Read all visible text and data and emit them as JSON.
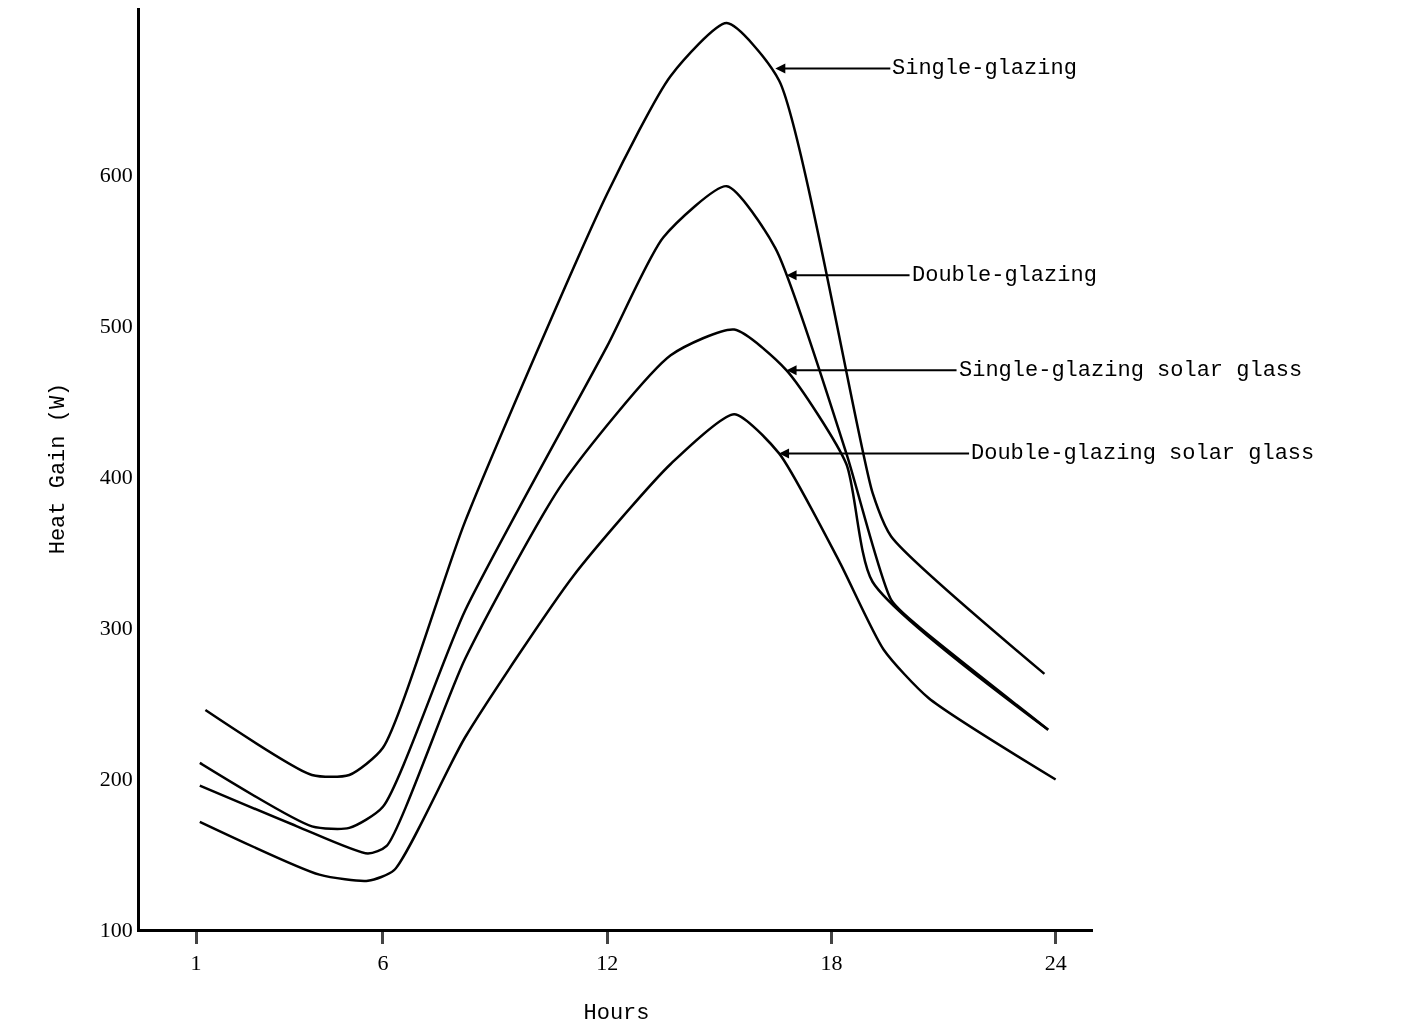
{
  "chart_data": {
    "type": "line",
    "xlabel": "Hours",
    "ylabel": "Heat Gain (W)",
    "xlim": [
      -0.5,
      25
    ],
    "ylim": [
      100,
      710
    ],
    "xticks": [
      1,
      6,
      12,
      18,
      24
    ],
    "yticks": [
      100,
      200,
      300,
      400,
      500,
      600
    ],
    "grid": false,
    "marker": "none",
    "line_style": "solid",
    "series": [
      {
        "color": "#000000",
        "x": [
          1.25,
          4.1,
          5.1,
          6,
          8.2,
          12,
          13.7,
          15.2,
          16.6,
          19.1,
          19.6,
          23.7
        ],
        "values": [
          245,
          202,
          202,
          220,
          370,
          587,
          665,
          700,
          662,
          389,
          360,
          269
        ]
      },
      {
        "color": "#000000",
        "x": [
          1.1,
          4.1,
          5.1,
          6,
          8.2,
          12,
          13.5,
          15.2,
          16.5,
          18.4,
          19.6,
          20.3,
          23.8
        ],
        "values": [
          210,
          168,
          167,
          181,
          311,
          486,
          558,
          592,
          551,
          415,
          318,
          301,
          232
        ]
      },
      {
        "color": "#000000",
        "x": [
          1.1,
          3.7,
          5.6,
          6.1,
          8.2,
          10.8,
          13.7,
          15.4,
          16.8,
          18.4,
          19.1,
          23.8
        ],
        "values": [
          195,
          168,
          150,
          155,
          279,
          395,
          480,
          497,
          470,
          408,
          330,
          232
        ]
      },
      {
        "color": "#000000",
        "x": [
          1.1,
          4.3,
          5.6,
          6.3,
          8.2,
          11.1,
          13.7,
          15.4,
          16.6,
          18.2,
          19.4,
          20.6,
          24
        ],
        "values": [
          171,
          136,
          132,
          139,
          227,
          334,
          408,
          441,
          415,
          344,
          285,
          253,
          199
        ]
      }
    ],
    "annotations": [
      {
        "text": "Single-glazing",
        "x": 16.5,
        "y": 670
      },
      {
        "text": "Double-glazing",
        "x": 16.8,
        "y": 533
      },
      {
        "text": "Single-glazing solar glass",
        "x": 16.8,
        "y": 470
      },
      {
        "text": "Double-glazing solar glass",
        "x": 16.6,
        "y": 415
      }
    ]
  }
}
